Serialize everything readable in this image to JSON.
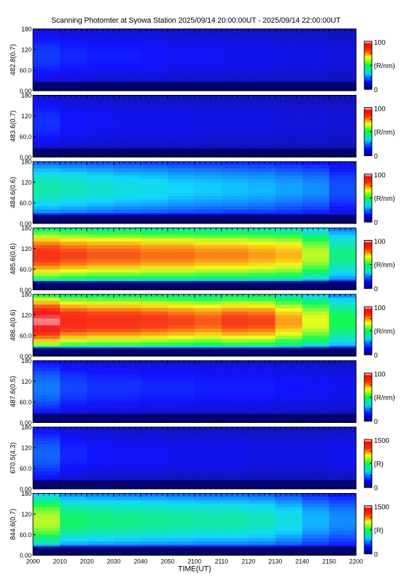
{
  "title": "Scanning Photomter at Syowa Station 2025/09/14 20:00:00UT - 2025/09/14 22:00:00UT",
  "chart_data": {
    "type": "heatmap",
    "xlabel": "TIME(UT)",
    "x_ticks": [
      "2000",
      "2010",
      "2020",
      "2030",
      "2040",
      "2050",
      "2100",
      "2110",
      "2120",
      "2130",
      "2140",
      "2150",
      "2200"
    ],
    "y_ticks": [
      "0.00",
      "60.0",
      "120",
      "180"
    ],
    "ylim": [
      0,
      180
    ],
    "panels": [
      {
        "label": "482.8(0.7)",
        "unit": "(R/nm)",
        "cbar_max": "100",
        "cbar_min": "0",
        "intensity": [
          0.18,
          0.16,
          0.15,
          0.15,
          0.14,
          0.13,
          0.13,
          0.12,
          0.12,
          0.11,
          0.11,
          0.1
        ]
      },
      {
        "label": "483.6(0.7)",
        "unit": "(R/nm)",
        "cbar_max": "100",
        "cbar_min": "0",
        "intensity": [
          0.17,
          0.14,
          0.13,
          0.12,
          0.12,
          0.12,
          0.11,
          0.11,
          0.11,
          0.1,
          0.1,
          0.09
        ]
      },
      {
        "label": "484.6(0.6)",
        "unit": "(R/nm)",
        "cbar_max": "100",
        "cbar_min": "0",
        "intensity": [
          0.42,
          0.4,
          0.38,
          0.36,
          0.35,
          0.33,
          0.32,
          0.31,
          0.3,
          0.28,
          0.26,
          0.2
        ]
      },
      {
        "label": "485.6(0.6)",
        "unit": "(R/nm)",
        "cbar_max": "100",
        "cbar_min": "0",
        "intensity": [
          0.85,
          0.82,
          0.8,
          0.8,
          0.78,
          0.78,
          0.76,
          0.76,
          0.74,
          0.72,
          0.62,
          0.45
        ]
      },
      {
        "label": "486.4(0.6)",
        "unit": "(R/nm)",
        "cbar_max": "100",
        "cbar_min": "0",
        "intensity": [
          0.97,
          0.88,
          0.86,
          0.86,
          0.84,
          0.82,
          0.8,
          0.83,
          0.82,
          0.74,
          0.65,
          0.5
        ]
      },
      {
        "label": "487.6(0.5)",
        "unit": "(R/nm)",
        "cbar_max": "100",
        "cbar_min": "0",
        "intensity": [
          0.24,
          0.19,
          0.17,
          0.17,
          0.16,
          0.16,
          0.15,
          0.15,
          0.15,
          0.14,
          0.13,
          0.12
        ]
      },
      {
        "label": "670.5(4.3)",
        "unit": "(R)",
        "cbar_max": "1500",
        "cbar_min": "0",
        "intensity": [
          0.22,
          0.16,
          0.14,
          0.13,
          0.13,
          0.12,
          0.12,
          0.12,
          0.11,
          0.11,
          0.11,
          0.12
        ]
      },
      {
        "label": "844.6(0.7)",
        "unit": "(R)",
        "cbar_max": "1500",
        "cbar_min": "0",
        "intensity": [
          0.62,
          0.48,
          0.46,
          0.45,
          0.44,
          0.43,
          0.42,
          0.42,
          0.4,
          0.36,
          0.3,
          0.26
        ]
      }
    ]
  }
}
